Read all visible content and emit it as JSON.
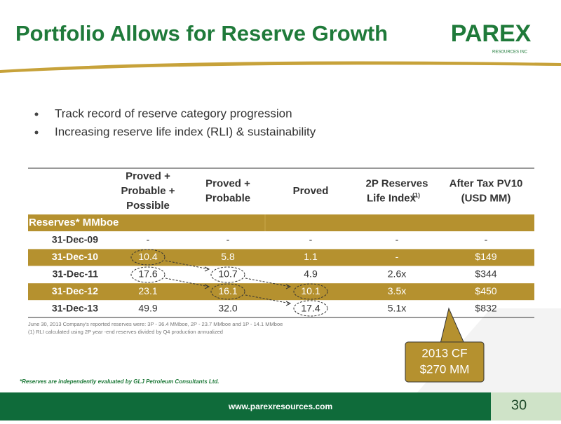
{
  "header": {
    "title": "Portfolio Allows for Reserve Growth",
    "logo": "PAREX",
    "logo_sub": "RESOURCES INC"
  },
  "bullets": [
    "Track record of reserve category progression",
    "Increasing reserve life index (RLI) & sustainability"
  ],
  "table": {
    "columns": [
      [
        "Proved +",
        "Probable +",
        "Possible"
      ],
      [
        "Proved +",
        "Probable"
      ],
      [
        "Proved"
      ],
      [
        "2P  Reserves",
        "Life Index"
      ],
      [
        "After Tax PV10",
        "(USD MM)"
      ]
    ],
    "life_index_note": "(1)",
    "section": "Reserves* MMboe",
    "rows": [
      [
        "31-Dec-09",
        "-",
        "-",
        "-",
        "-",
        "-"
      ],
      [
        "31-Dec-10",
        "10.4",
        "5.8",
        "1.1",
        "-",
        "$149"
      ],
      [
        "31-Dec-11",
        "17.6",
        "10.7",
        "4.9",
        "2.6x",
        "$344"
      ],
      [
        "31-Dec-12",
        "23.1",
        "16.1",
        "10.1",
        "3.5x",
        "$450"
      ],
      [
        "31-Dec-13",
        "49.9",
        "32.0",
        "17.4",
        "5.1x",
        "$832"
      ]
    ]
  },
  "footnotes": [
    "June 30, 2013 Company's reported reserves were:  3P - 36.4 MMboe,  2P - 23.7 MMboe and 1P - 14.1 MMboe",
    "(1)    RLI calculated using 2P year -end reserves divided by Q4 production annualized"
  ],
  "callout": [
    "2013 CF",
    "$270 MM"
  ],
  "reserves_note": "*Reserves are independently evaluated by GLJ Petroleum Consultants Ltd.",
  "footer": {
    "url": "www.parexresources.com",
    "page": "30"
  }
}
